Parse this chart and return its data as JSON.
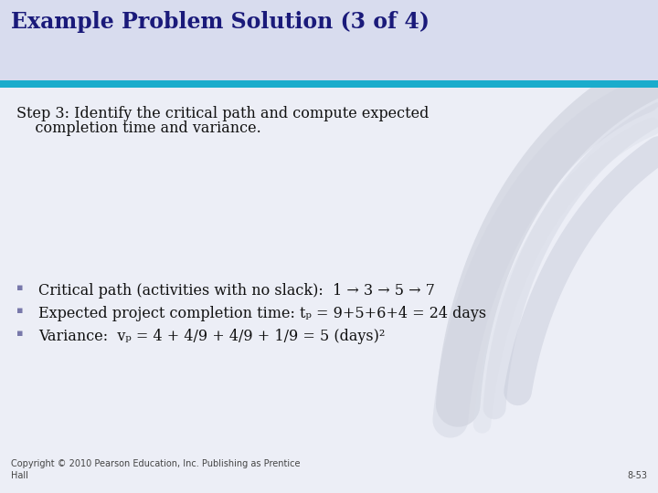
{
  "title": "Example Problem Solution (3 of 4)",
  "title_color": "#1a1a7a",
  "title_bg_color": "#d8dcee",
  "title_fontsize": 17,
  "header_bar_color": "#1aaccc",
  "body_bg_color": "#eceef6",
  "step_text_line1": "Step 3: Identify the critical path and compute expected",
  "step_text_line2": "    completion time and variance.",
  "step_fontsize": 11.5,
  "bullet_color": "#7878aa",
  "bullet1": "Critical path (activities with no slack):  1 → 3 → 5 → 7",
  "bullet2": "Expected project completion time: tₚ = 9+5+6+4 = 24 days",
  "bullet3": "Variance:  vₚ = 4 + 4/9 + 4/9 + 1/9 = 5 (days)²",
  "bullet_fontsize": 11.5,
  "body_text_color": "#111111",
  "footer_text": "Copyright © 2010 Pearson Education, Inc. Publishing as Prentice\nHall",
  "footer_right": "8-53",
  "footer_fontsize": 7
}
